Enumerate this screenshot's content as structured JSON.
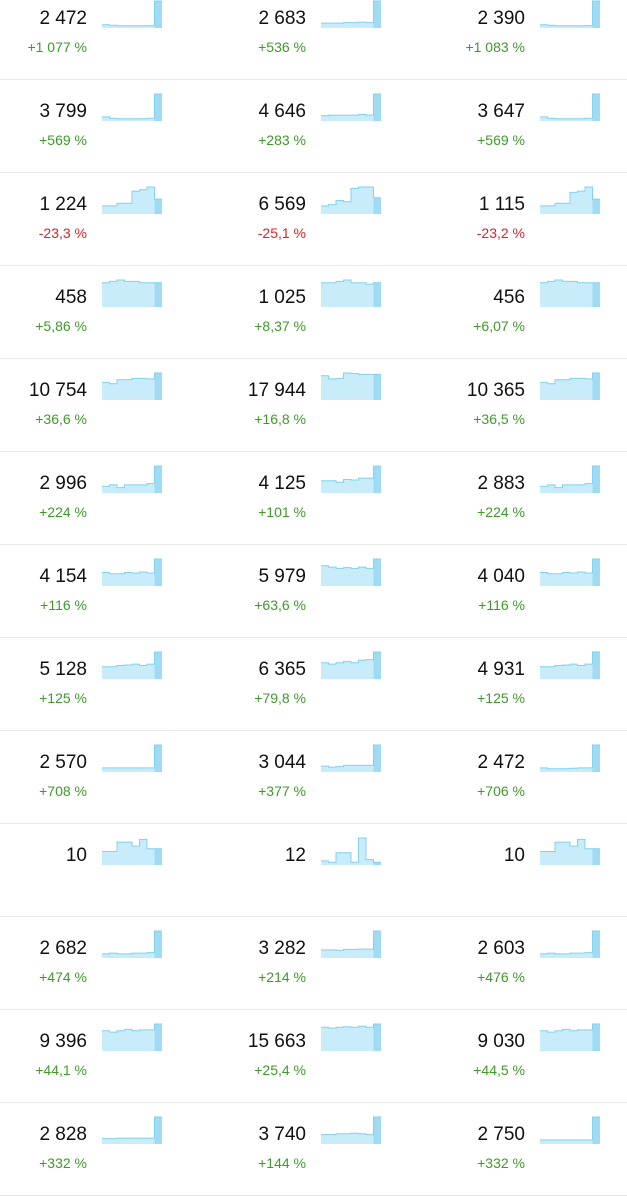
{
  "colors": {
    "positive": "#3f9a2a",
    "negative": "#d8232a",
    "spark_fill": "#c8ecf9",
    "spark_stroke": "#80d2f0",
    "spark_last": "#9fdcf4",
    "divider": "#e9e9e9"
  },
  "rows": [
    {
      "cells": [
        {
          "value": "2 472",
          "change": "+1 077 %",
          "dir": "pos",
          "spark": [
            0.12,
            0.1,
            0.08,
            0.08,
            0.08,
            0.08,
            0.09,
            1
          ]
        },
        {
          "value": "2 683",
          "change": "+536 %",
          "dir": "pos",
          "spark": [
            0.18,
            0.18,
            0.18,
            0.2,
            0.2,
            0.22,
            0.2,
            1
          ]
        },
        {
          "value": "2 390",
          "change": "+1 083 %",
          "dir": "pos",
          "spark": [
            0.12,
            0.1,
            0.08,
            0.08,
            0.08,
            0.08,
            0.09,
            1
          ]
        }
      ]
    },
    {
      "cells": [
        {
          "value": "3 799",
          "change": "+569 %",
          "dir": "pos",
          "spark": [
            0.15,
            0.1,
            0.08,
            0.08,
            0.08,
            0.08,
            0.1,
            1
          ]
        },
        {
          "value": "4 646",
          "change": "+283 %",
          "dir": "pos",
          "spark": [
            0.2,
            0.22,
            0.22,
            0.22,
            0.22,
            0.24,
            0.22,
            1
          ]
        },
        {
          "value": "3 647",
          "change": "+569 %",
          "dir": "pos",
          "spark": [
            0.15,
            0.1,
            0.08,
            0.08,
            0.08,
            0.08,
            0.1,
            1
          ]
        }
      ]
    },
    {
      "cells": [
        {
          "value": "1 224",
          "change": "-23,3 %",
          "dir": "neg",
          "spark": [
            0.3,
            0.3,
            0.4,
            0.4,
            0.85,
            0.9,
            1,
            0.55
          ]
        },
        {
          "value": "6 569",
          "change": "-25,1 %",
          "dir": "neg",
          "spark": [
            0.3,
            0.35,
            0.5,
            0.45,
            0.95,
            1,
            1,
            0.6
          ]
        },
        {
          "value": "1 115",
          "change": "-23,2 %",
          "dir": "neg",
          "spark": [
            0.3,
            0.3,
            0.4,
            0.4,
            0.8,
            0.85,
            1,
            0.55
          ]
        }
      ]
    },
    {
      "cells": [
        {
          "value": "458",
          "change": "+5,86 %",
          "dir": "pos",
          "spark": [
            0.9,
            0.95,
            1,
            0.95,
            0.95,
            0.9,
            0.9,
            0.9
          ]
        },
        {
          "value": "1 025",
          "change": "+8,37 %",
          "dir": "pos",
          "spark": [
            0.9,
            0.9,
            0.95,
            1,
            0.9,
            0.9,
            0.85,
            0.9
          ]
        },
        {
          "value": "456",
          "change": "+6,07 %",
          "dir": "pos",
          "spark": [
            0.9,
            0.95,
            1,
            0.95,
            0.95,
            0.9,
            0.9,
            0.9
          ]
        }
      ]
    },
    {
      "cells": [
        {
          "value": "10 754",
          "change": "+36,6 %",
          "dir": "pos",
          "spark": [
            0.65,
            0.6,
            0.75,
            0.75,
            0.8,
            0.8,
            0.78,
            1
          ]
        },
        {
          "value": "17 944",
          "change": "+16,8 %",
          "dir": "pos",
          "spark": [
            0.9,
            0.78,
            0.8,
            1,
            0.98,
            0.95,
            0.95,
            0.95
          ]
        },
        {
          "value": "10 365",
          "change": "+36,5 %",
          "dir": "pos",
          "spark": [
            0.65,
            0.6,
            0.75,
            0.75,
            0.8,
            0.8,
            0.78,
            1
          ]
        }
      ]
    },
    {
      "cells": [
        {
          "value": "2 996",
          "change": "+224 %",
          "dir": "pos",
          "spark": [
            0.25,
            0.3,
            0.2,
            0.3,
            0.3,
            0.3,
            0.35,
            1
          ]
        },
        {
          "value": "4 125",
          "change": "+101 %",
          "dir": "pos",
          "spark": [
            0.45,
            0.45,
            0.4,
            0.5,
            0.48,
            0.55,
            0.55,
            1
          ]
        },
        {
          "value": "2 883",
          "change": "+224 %",
          "dir": "pos",
          "spark": [
            0.25,
            0.3,
            0.2,
            0.3,
            0.3,
            0.3,
            0.35,
            1
          ]
        }
      ]
    },
    {
      "cells": [
        {
          "value": "4 154",
          "change": "+116 %",
          "dir": "pos",
          "spark": [
            0.5,
            0.45,
            0.45,
            0.5,
            0.48,
            0.52,
            0.48,
            1
          ]
        },
        {
          "value": "5 979",
          "change": "+63,6 %",
          "dir": "pos",
          "spark": [
            0.75,
            0.7,
            0.65,
            0.68,
            0.65,
            0.7,
            0.65,
            1
          ]
        },
        {
          "value": "4 040",
          "change": "+116 %",
          "dir": "pos",
          "spark": [
            0.5,
            0.45,
            0.45,
            0.5,
            0.48,
            0.52,
            0.48,
            1
          ]
        }
      ]
    },
    {
      "cells": [
        {
          "value": "5 128",
          "change": "+125 %",
          "dir": "pos",
          "spark": [
            0.45,
            0.45,
            0.5,
            0.52,
            0.55,
            0.5,
            0.55,
            1
          ]
        },
        {
          "value": "6 365",
          "change": "+79,8 %",
          "dir": "pos",
          "spark": [
            0.6,
            0.55,
            0.6,
            0.65,
            0.6,
            0.7,
            0.72,
            1
          ]
        },
        {
          "value": "4 931",
          "change": "+125 %",
          "dir": "pos",
          "spark": [
            0.45,
            0.45,
            0.5,
            0.52,
            0.55,
            0.5,
            0.55,
            1
          ]
        }
      ]
    },
    {
      "cells": [
        {
          "value": "2 570",
          "change": "+708 %",
          "dir": "pos",
          "spark": [
            0.15,
            0.15,
            0.15,
            0.15,
            0.15,
            0.15,
            0.15,
            1
          ]
        },
        {
          "value": "3 044",
          "change": "+377 %",
          "dir": "pos",
          "spark": [
            0.22,
            0.18,
            0.2,
            0.25,
            0.25,
            0.25,
            0.25,
            1
          ]
        },
        {
          "value": "2 472",
          "change": "+706 %",
          "dir": "pos",
          "spark": [
            0.15,
            0.12,
            0.12,
            0.12,
            0.14,
            0.15,
            0.15,
            1
          ]
        }
      ]
    },
    {
      "cells": [
        {
          "value": "10",
          "change": "",
          "dir": "pos",
          "spark": [
            0.5,
            0.5,
            0.85,
            0.85,
            0.7,
            0.95,
            0.6,
            0.6
          ]
        },
        {
          "value": "12",
          "change": "",
          "dir": "pos",
          "spark": [
            0.15,
            0.1,
            0.45,
            0.45,
            0.1,
            1,
            0.2,
            0.1
          ]
        },
        {
          "value": "10",
          "change": "",
          "dir": "pos",
          "spark": [
            0.5,
            0.5,
            0.85,
            0.85,
            0.7,
            0.95,
            0.6,
            0.6
          ]
        }
      ]
    },
    {
      "cells": [
        {
          "value": "2 682",
          "change": "+474 %",
          "dir": "pos",
          "spark": [
            0.15,
            0.18,
            0.15,
            0.15,
            0.18,
            0.18,
            0.2,
            1
          ]
        },
        {
          "value": "3 282",
          "change": "+214 %",
          "dir": "pos",
          "spark": [
            0.3,
            0.3,
            0.28,
            0.32,
            0.32,
            0.33,
            0.33,
            1
          ]
        },
        {
          "value": "2 603",
          "change": "+476 %",
          "dir": "pos",
          "spark": [
            0.15,
            0.18,
            0.15,
            0.15,
            0.18,
            0.18,
            0.2,
            1
          ]
        }
      ]
    },
    {
      "cells": [
        {
          "value": "9 396",
          "change": "+44,1 %",
          "dir": "pos",
          "spark": [
            0.75,
            0.7,
            0.75,
            0.8,
            0.75,
            0.78,
            0.78,
            1
          ]
        },
        {
          "value": "15 663",
          "change": "+25,4 %",
          "dir": "pos",
          "spark": [
            0.88,
            0.85,
            0.88,
            0.9,
            0.88,
            0.92,
            0.88,
            1
          ]
        },
        {
          "value": "9 030",
          "change": "+44,5 %",
          "dir": "pos",
          "spark": [
            0.75,
            0.7,
            0.75,
            0.8,
            0.75,
            0.78,
            0.78,
            1
          ]
        }
      ]
    },
    {
      "cells": [
        {
          "value": "2 828",
          "change": "+332 %",
          "dir": "pos",
          "spark": [
            0.2,
            0.2,
            0.22,
            0.22,
            0.22,
            0.22,
            0.22,
            1
          ]
        },
        {
          "value": "3 740",
          "change": "+144 %",
          "dir": "pos",
          "spark": [
            0.35,
            0.35,
            0.38,
            0.38,
            0.4,
            0.38,
            0.35,
            1
          ]
        },
        {
          "value": "2 750",
          "change": "+332 %",
          "dir": "pos",
          "spark": [
            0.15,
            0.15,
            0.15,
            0.15,
            0.15,
            0.15,
            0.15,
            1
          ]
        }
      ]
    }
  ]
}
